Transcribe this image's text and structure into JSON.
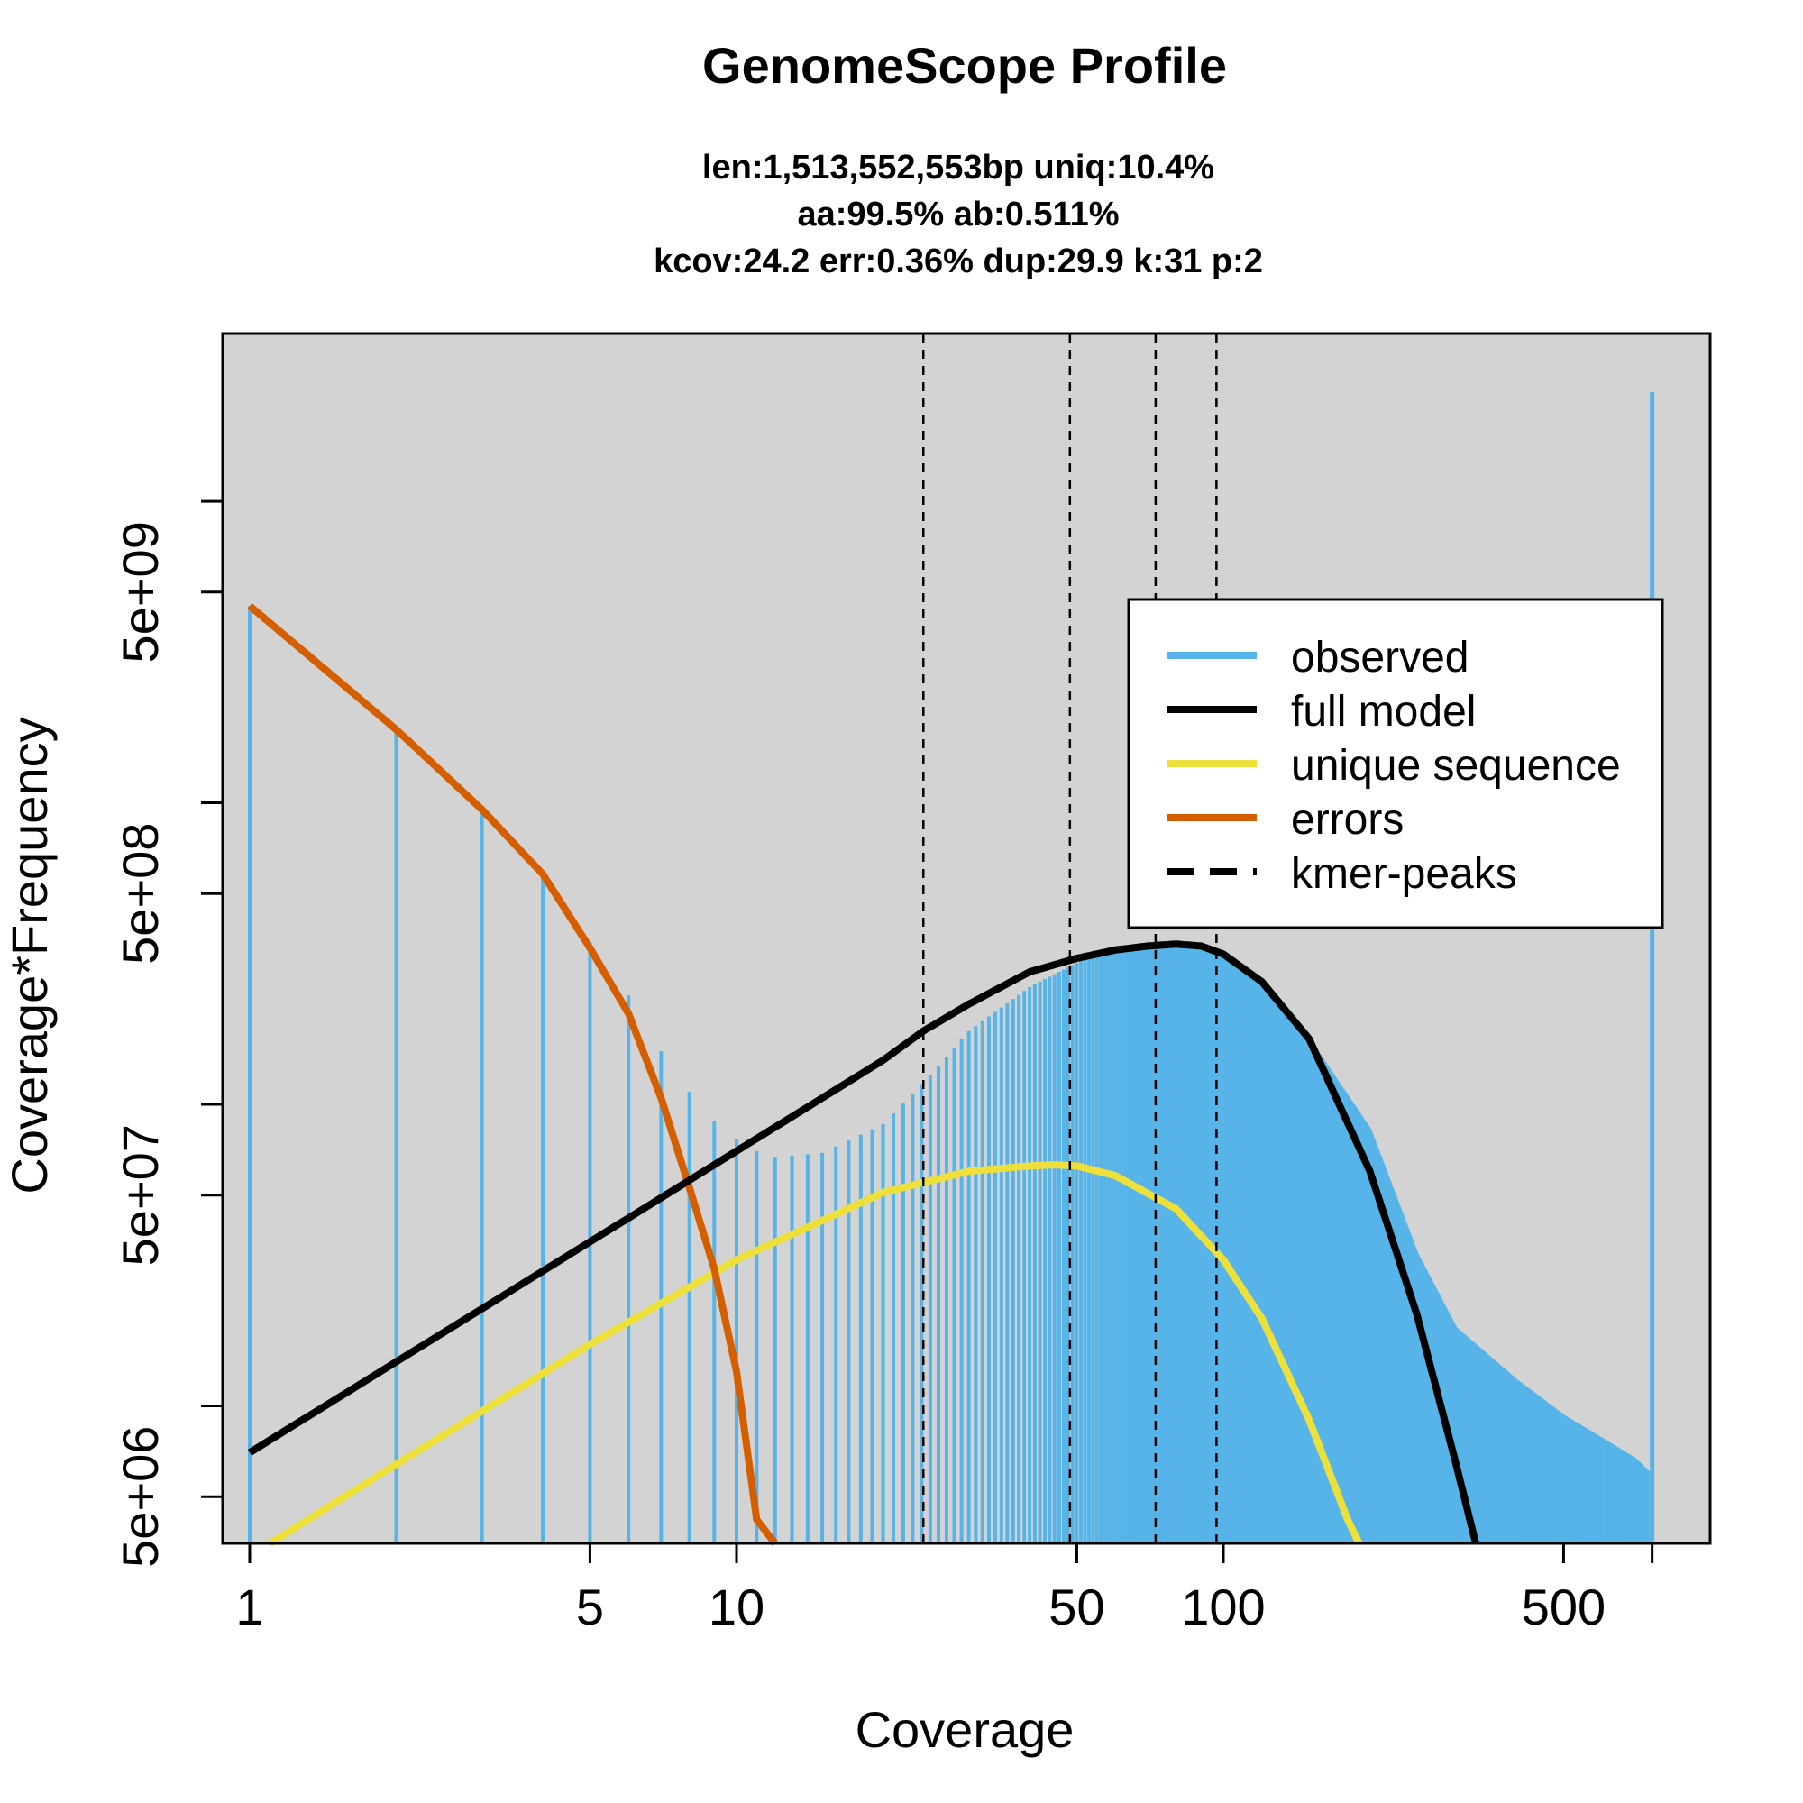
{
  "chart_data": {
    "type": "bar",
    "title": "GenomeScope Profile",
    "subtitle_lines": [
      "len:1,513,552,553bp uniq:10.4%",
      "aa:99.5% ab:0.511%",
      "kcov:24.2 err:0.36%  dup:29.9  k:31 p:2"
    ],
    "xlabel": "Coverage",
    "ylabel": "Coverage*Frequency",
    "x_scale": "log",
    "y_scale": "log",
    "xlim": [
      0.88,
      1000
    ],
    "ylim": [
      3500000.0,
      36000000000.0
    ],
    "x_ticks": [
      1,
      5,
      10,
      50,
      100,
      500
    ],
    "y_major_ticks": [
      5000000.0,
      50000000.0,
      500000000.0,
      5000000000.0
    ],
    "y_major_labels": [
      "5e+06",
      "5e+07",
      "5e+08",
      "5e+09"
    ],
    "y_minor_ticks": [
      10000000.0,
      100000000.0,
      1000000000.0,
      10000000000.0
    ],
    "grid": false,
    "background_color": "#d3d3d3",
    "kmer_peaks": [
      24.2,
      48.4,
      72.6,
      96.8
    ],
    "observed_points": [
      [
        1,
        4500000000.0
      ],
      [
        2,
        1800000000.0
      ],
      [
        3,
        950000000.0
      ],
      [
        4,
        590000000.0
      ],
      [
        5,
        345000000.0
      ],
      [
        6,
        230000000.0
      ],
      [
        7,
        150000000.0
      ],
      [
        8,
        110000000.0
      ],
      [
        9,
        88000000.0
      ],
      [
        10,
        77000000.0
      ],
      [
        11,
        70000000.0
      ],
      [
        12,
        67000000.0
      ],
      [
        15,
        69000000.0
      ],
      [
        20,
        86000000.0
      ],
      [
        25,
        125000000.0
      ],
      [
        30,
        175000000.0
      ],
      [
        40,
        245000000.0
      ],
      [
        50,
        295000000.0
      ],
      [
        60,
        335000000.0
      ],
      [
        80,
        345000000.0
      ],
      [
        100,
        310000000.0
      ],
      [
        120,
        255000000.0
      ],
      [
        150,
        165000000.0
      ],
      [
        200,
        83000000.0
      ],
      [
        250,
        32000000.0
      ],
      [
        300,
        18200000.0
      ],
      [
        400,
        12200000.0
      ],
      [
        500,
        9300000.0
      ],
      [
        600,
        7800000.0
      ],
      [
        700,
        6700000.0
      ],
      [
        750,
        6000000.0
      ],
      [
        760,
        23000000000.0
      ]
    ],
    "series": [
      {
        "name": "full model",
        "color": "#000000",
        "points": [
          [
            1,
            7000000.0
          ],
          [
            5,
            35000000.0
          ],
          [
            10,
            70000000.0
          ],
          [
            20,
            140000000.0
          ],
          [
            24.2,
            175000000.0
          ],
          [
            30,
            215000000.0
          ],
          [
            40,
            275000000.0
          ],
          [
            50,
            305000000.0
          ],
          [
            60,
            325000000.0
          ],
          [
            70,
            335000000.0
          ],
          [
            80,
            340000000.0
          ],
          [
            90,
            335000000.0
          ],
          [
            100,
            315000000.0
          ],
          [
            120,
            255000000.0
          ],
          [
            150,
            165000000.0
          ],
          [
            200,
            60000000.0
          ],
          [
            250,
            20000000.0
          ],
          [
            300,
            6500000.0
          ],
          [
            330,
            3500000.0
          ]
        ]
      },
      {
        "name": "unique sequence",
        "color": "#ede03a",
        "points": [
          [
            1.1,
            3500000.0
          ],
          [
            2,
            6400000.0
          ],
          [
            5,
            16000000.0
          ],
          [
            10,
            30500000.0
          ],
          [
            20,
            51000000.0
          ],
          [
            30,
            60000000.0
          ],
          [
            40,
            62500000.0
          ],
          [
            45,
            63000000.0
          ],
          [
            50,
            62500000.0
          ],
          [
            60,
            58000000.0
          ],
          [
            80,
            45000000.0
          ],
          [
            100,
            30500000.0
          ],
          [
            120,
            19500000.0
          ],
          [
            150,
            9000000.0
          ],
          [
            180,
            4200000.0
          ],
          [
            190,
            3500000.0
          ]
        ]
      },
      {
        "name": "errors",
        "color": "#d55e00",
        "points": [
          [
            1,
            4500000000.0
          ],
          [
            2,
            1750000000.0
          ],
          [
            3,
            950000000.0
          ],
          [
            4,
            580000000.0
          ],
          [
            5,
            330000000.0
          ],
          [
            6,
            200000000.0
          ],
          [
            7,
            105000000.0
          ],
          [
            8,
            53000000.0
          ],
          [
            9,
            28500000.0
          ],
          [
            10,
            13000000.0
          ],
          [
            11,
            4200000.0
          ],
          [
            12,
            3500000.0
          ]
        ]
      }
    ],
    "observed_color": "#56b4e9",
    "legend": {
      "placement": "top-right",
      "entries": [
        {
          "label": "observed",
          "color": "#56b4e9",
          "style": "solid"
        },
        {
          "label": "full model",
          "color": "#000000",
          "style": "solid"
        },
        {
          "label": "unique sequence",
          "color": "#ede03a",
          "style": "solid"
        },
        {
          "label": "errors",
          "color": "#d55e00",
          "style": "solid"
        },
        {
          "label": "kmer-peaks",
          "color": "#000000",
          "style": "dashed"
        }
      ]
    }
  }
}
